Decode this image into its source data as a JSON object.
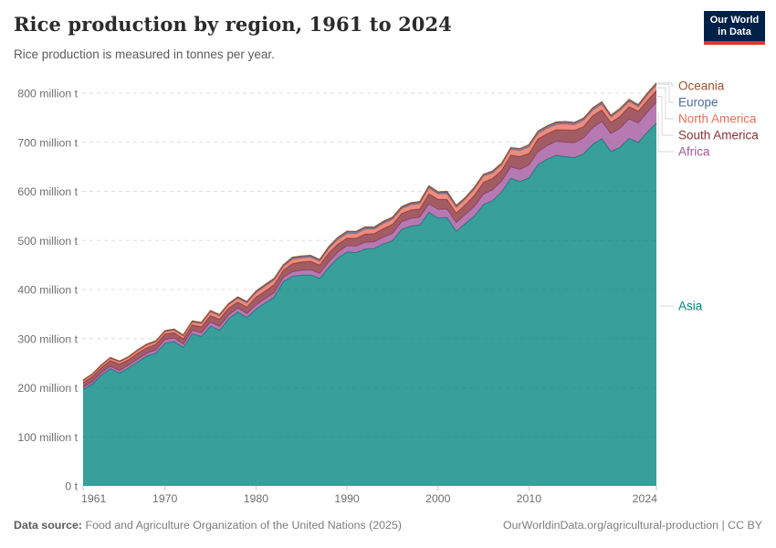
{
  "header": {
    "title": "Rice production by region, 1961 to 2024",
    "subtitle": "Rice production is measured in tonnes per year.",
    "logo": {
      "line1": "Our World",
      "line2": "in Data",
      "bg": "#002147",
      "accent": "#e0362c"
    }
  },
  "footer": {
    "source_label": "Data source:",
    "source_text": "Food and Agriculture Organization of the United Nations (2025)",
    "link_text": "OurWorldinData.org/agricultural-production | CC BY"
  },
  "legend": {
    "items": [
      {
        "label": "Oceania",
        "y": 94,
        "elbow": 736
      },
      {
        "label": "Europe",
        "y": 112,
        "elbow": 733
      },
      {
        "label": "North America",
        "y": 130,
        "elbow": 729
      },
      {
        "label": "South America",
        "y": 148,
        "elbow": 725
      },
      {
        "label": "Africa",
        "y": 166,
        "elbow": 721
      },
      {
        "label": "Asia",
        "y": 335,
        "elbow": null
      }
    ]
  },
  "chart_data": {
    "type": "area",
    "stacked": true,
    "title": "Rice production by region, 1961 to 2024",
    "xlabel": "",
    "ylabel": "",
    "values_unit": "million tonnes per year",
    "ylim": [
      0,
      800
    ],
    "grid": "dashed-horizontal",
    "legend_position": "right",
    "x": [
      1961,
      1962,
      1963,
      1964,
      1965,
      1966,
      1967,
      1968,
      1969,
      1970,
      1971,
      1972,
      1973,
      1974,
      1975,
      1976,
      1977,
      1978,
      1979,
      1980,
      1981,
      1982,
      1983,
      1984,
      1985,
      1986,
      1987,
      1988,
      1989,
      1990,
      1991,
      1992,
      1993,
      1994,
      1995,
      1996,
      1997,
      1998,
      1999,
      2000,
      2001,
      2002,
      2003,
      2004,
      2005,
      2006,
      2007,
      2008,
      2009,
      2010,
      2011,
      2012,
      2013,
      2014,
      2015,
      2016,
      2017,
      2018,
      2019,
      2020,
      2021,
      2022,
      2023,
      2024
    ],
    "x_ticks": [
      1961,
      1970,
      1980,
      1990,
      2000,
      2010,
      2024
    ],
    "y_ticks": [
      {
        "value": 0,
        "label": "0 t"
      },
      {
        "value": 100,
        "label": "100 million t"
      },
      {
        "value": 200,
        "label": "200 million t"
      },
      {
        "value": 300,
        "label": "300 million t"
      },
      {
        "value": 400,
        "label": "400 million t"
      },
      {
        "value": 500,
        "label": "500 million t"
      },
      {
        "value": 600,
        "label": "600 million t"
      },
      {
        "value": 700,
        "label": "700 million t"
      },
      {
        "value": 800,
        "label": "800 million t"
      }
    ],
    "plot": {
      "x0": 91,
      "x1": 719,
      "y0": 532,
      "y1": 102,
      "vmax": 800
    },
    "series": [
      {
        "name": "Asia",
        "color": "#00847E",
        "values": [
          196.5,
          207.5,
          225.4,
          238.9,
          229.7,
          240.5,
          252.4,
          264.5,
          270.6,
          290.6,
          294.0,
          282.2,
          309.8,
          304.4,
          325.8,
          317.0,
          340.7,
          354.5,
          342.9,
          360.0,
          372.4,
          384.7,
          416.2,
          426.9,
          429.3,
          429.8,
          422.9,
          445.1,
          464.0,
          476.5,
          475.2,
          482.5,
          483.8,
          492.8,
          499.5,
          522.5,
          529.1,
          531.4,
          557.2,
          545.6,
          546.4,
          518.6,
          534.6,
          549.5,
          573.2,
          581.1,
          598.8,
          626.4,
          620.1,
          627.3,
          654.8,
          665.4,
          673.5,
          670.5,
          668.8,
          676.4,
          695.9,
          707.1,
          681.1,
          689.7,
          708.1,
          699.6,
          720.6,
          738.9
        ]
      },
      {
        "name": "Africa",
        "color": "#A2559C",
        "values": [
          4.2,
          4.4,
          4.7,
          4.9,
          5.2,
          5.3,
          5.6,
          5.8,
          6.2,
          7.4,
          7.3,
          6.8,
          7.1,
          7.5,
          7.9,
          7.9,
          7.8,
          8.0,
          8.3,
          8.6,
          8.9,
          8.8,
          8.3,
          9.0,
          9.8,
          10.4,
          10.1,
          11.5,
          12.1,
          12.6,
          13.2,
          13.5,
          13.5,
          13.9,
          14.6,
          15.7,
          15.4,
          16.1,
          17.1,
          17.5,
          17.3,
          17.7,
          18.4,
          19.3,
          21.1,
          22.1,
          21.9,
          23.5,
          24.6,
          26.5,
          26.0,
          27.9,
          28.3,
          29.6,
          30.4,
          32.3,
          33.8,
          35.1,
          36.5,
          38.6,
          39.3,
          39.5,
          40.6,
          42.5
        ]
      },
      {
        "name": "South America",
        "color": "#883039",
        "values": [
          9.9,
          10.5,
          10.7,
          11.6,
          13.0,
          11.1,
          12.3,
          11.1,
          11.5,
          11.2,
          10.7,
          10.8,
          11.1,
          12.0,
          13.5,
          14.6,
          13.9,
          12.1,
          13.3,
          15.9,
          15.1,
          16.5,
          14.5,
          16.8,
          17.1,
          17.4,
          16.7,
          17.9,
          16.6,
          15.4,
          16.0,
          16.9,
          16.7,
          17.5,
          18.6,
          16.5,
          17.5,
          16.6,
          20.9,
          20.6,
          19.8,
          19.5,
          19.9,
          23.1,
          24.3,
          23.2,
          22.1,
          24.2,
          26.1,
          23.5,
          26.4,
          23.9,
          23.8,
          25.2,
          25.3,
          23.2,
          24.3,
          23.5,
          22.8,
          24.5,
          25.1,
          24.0,
          23.7,
          24.0
        ]
      },
      {
        "name": "North America",
        "color": "#E56E5A",
        "values": [
          3.3,
          3.7,
          3.9,
          4.2,
          4.3,
          4.5,
          4.9,
          5.2,
          5.0,
          4.9,
          5.1,
          5.3,
          5.4,
          6.3,
          7.1,
          6.7,
          6.3,
          7.3,
          7.7,
          8.9,
          10.1,
          8.9,
          7.5,
          8.8,
          7.9,
          7.8,
          7.4,
          8.5,
          8.9,
          9.3,
          9.2,
          10.0,
          8.9,
          10.4,
          10.1,
          9.8,
          10.3,
          10.5,
          11.5,
          11.1,
          11.6,
          11.2,
          10.9,
          12.3,
          12.5,
          10.8,
          10.9,
          11.2,
          12.1,
          13.0,
          10.8,
          11.1,
          10.5,
          12.0,
          11.2,
          12.8,
          11.0,
          12.0,
          10.4,
          11.8,
          10.3,
          9.1,
          10.8,
          11.0
        ]
      },
      {
        "name": "Europe",
        "color": "#4C6A9C",
        "values": [
          1.5,
          1.6,
          1.6,
          1.7,
          1.7,
          1.7,
          1.8,
          1.9,
          1.9,
          1.9,
          2.0,
          2.1,
          2.2,
          2.3,
          2.4,
          2.3,
          2.5,
          2.6,
          2.7,
          2.8,
          2.9,
          3.0,
          3.1,
          3.2,
          3.3,
          3.4,
          3.5,
          3.7,
          3.9,
          4.1,
          3.9,
          3.7,
          3.5,
          3.3,
          3.4,
          3.3,
          3.3,
          3.2,
          3.2,
          3.2,
          3.3,
          3.3,
          3.3,
          3.5,
          3.4,
          3.4,
          3.5,
          3.6,
          4.0,
          4.4,
          4.3,
          4.2,
          4.0,
          4.0,
          4.1,
          4.2,
          4.3,
          4.1,
          4.1,
          4.0,
          4.1,
          3.6,
          3.7,
          3.8
        ]
      },
      {
        "name": "Oceania",
        "color": "#9A5129",
        "values": [
          0.2,
          0.2,
          0.2,
          0.2,
          0.2,
          0.2,
          0.3,
          0.3,
          0.3,
          0.3,
          0.3,
          0.4,
          0.4,
          0.5,
          0.5,
          0.5,
          0.6,
          0.7,
          0.7,
          0.8,
          0.9,
          0.9,
          0.6,
          0.9,
          0.9,
          0.8,
          0.7,
          0.8,
          0.9,
          1.0,
          0.9,
          1.1,
          1.1,
          1.2,
          1.3,
          1.1,
          1.4,
          1.4,
          1.4,
          1.1,
          1.8,
          1.3,
          0.4,
          0.6,
          0.3,
          1.0,
          0.2,
          0.1,
          0.1,
          0.2,
          0.7,
          0.9,
          1.2,
          0.8,
          0.7,
          0.3,
          0.8,
          0.6,
          0.1,
          0.1,
          0.5,
          0.7,
          0.5,
          0.8
        ]
      }
    ],
    "style": {
      "fill_opacity": 0.78,
      "grid_color": "#dedede",
      "axis_text_color": "#6e6e6e",
      "connector_color": "#d8d8d8",
      "tick_color": "#c8c8c8"
    }
  }
}
